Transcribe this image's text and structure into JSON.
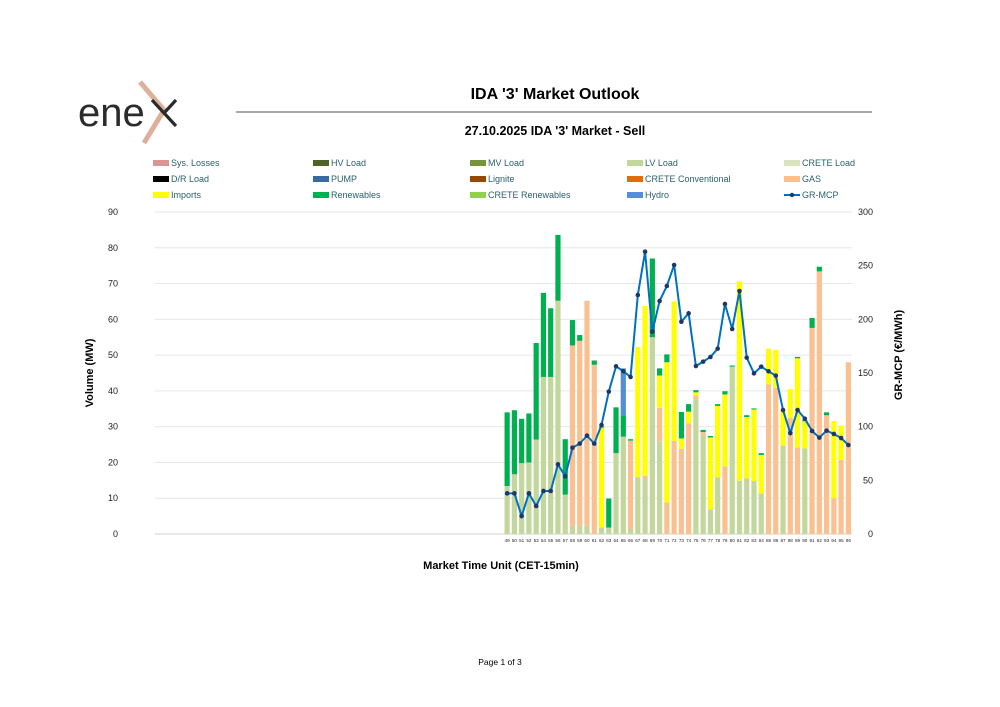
{
  "header": {
    "logo_text": "enex",
    "title": "IDA '3' Market Outlook",
    "subtitle": "27.10.2025  IDA '3' Market - Sell"
  },
  "footer": {
    "page": "Page 1 of 3"
  },
  "chart_data": {
    "type": "bar",
    "stacked": true,
    "xlabel": "Market Time Unit (CET-15min)",
    "ylabel": "Volume (MW)",
    "y2label": "GR-MCP (€/MWh)",
    "ylim": [
      0,
      90
    ],
    "y2lim": [
      0,
      300
    ],
    "yticks": [
      "0",
      "10",
      "20",
      "30",
      "40",
      "50",
      "60",
      "70",
      "80",
      "90"
    ],
    "y2ticks": [
      "0",
      "50",
      "100",
      "150",
      "200",
      "250",
      "300"
    ],
    "grid": true,
    "legend_placement": "top",
    "categories": [
      "49",
      "50",
      "51",
      "52",
      "53",
      "54",
      "55",
      "56",
      "57",
      "58",
      "59",
      "60",
      "61",
      "62",
      "63",
      "64",
      "65",
      "66",
      "67",
      "68",
      "69",
      "70",
      "71",
      "72",
      "73",
      "74",
      "75",
      "76",
      "77",
      "78",
      "79",
      "80",
      "81",
      "82",
      "83",
      "84",
      "85",
      "86",
      "87",
      "88",
      "89",
      "90",
      "91",
      "92",
      "93",
      "94",
      "95",
      "96"
    ],
    "legend": [
      {
        "name": "Sys. Losses",
        "color": "#d99694"
      },
      {
        "name": "HV Load",
        "color": "#4f6228"
      },
      {
        "name": "MV Load",
        "color": "#77933c"
      },
      {
        "name": "LV Load",
        "color": "#c3d69b"
      },
      {
        "name": "CRETE Load",
        "color": "#d7e4bd"
      },
      {
        "name": "D/R Load",
        "color": "#000000"
      },
      {
        "name": "PUMP",
        "color": "#3a6aa3"
      },
      {
        "name": "Lignite",
        "color": "#974806"
      },
      {
        "name": "CRETE Conventional",
        "color": "#e36c09"
      },
      {
        "name": "GAS",
        "color": "#fac090"
      },
      {
        "name": "Imports",
        "color": "#ffff00"
      },
      {
        "name": "Renewables",
        "color": "#00b050"
      },
      {
        "name": "CRETE Renewables",
        "color": "#92d050"
      },
      {
        "name": "Hydro",
        "color": "#558ed5"
      },
      {
        "name": "GR-MCP",
        "color": "#0070c0",
        "type": "line"
      }
    ],
    "series": [
      {
        "name": "LV Load",
        "color": "#c3d69b",
        "values": [
          13.4,
          16.7,
          19.8,
          20.0,
          26.4,
          43.9,
          43.9,
          65.2,
          11.0,
          2.3,
          2.3,
          2.3,
          0,
          1.8,
          1.8,
          22.6,
          27.2,
          1.4,
          15.9,
          15.5,
          55.0,
          25.8,
          0,
          0,
          0,
          0,
          37.7,
          27.7,
          6.9,
          15.8,
          0,
          46.8,
          14.9,
          15.6,
          14.8,
          11.3,
          0,
          0,
          24.7,
          0,
          0,
          23.9,
          0,
          0,
          0,
          0,
          0,
          0
        ]
      },
      {
        "name": "GAS",
        "color": "#fac090",
        "values": [
          0,
          0,
          0,
          0,
          0,
          0,
          0,
          0,
          0,
          50.4,
          51.7,
          62.9,
          47.3,
          0,
          0,
          0,
          0,
          24.7,
          0,
          0.8,
          0,
          9.5,
          8.8,
          26.0,
          23.8,
          30.9,
          1.0,
          0.8,
          0,
          0,
          18.9,
          0,
          0,
          0,
          0,
          0,
          41.8,
          40.9,
          0,
          32.5,
          24.2,
          0,
          57.6,
          73.4,
          33.2,
          10.0,
          20.7,
          48.0
        ]
      },
      {
        "name": "Imports",
        "color": "#ffff00",
        "values": [
          0,
          0,
          0,
          0,
          0,
          0,
          0,
          0,
          0,
          0,
          0,
          0,
          0,
          27.9,
          0,
          0,
          0,
          0,
          36.4,
          47.4,
          0,
          9.0,
          39.2,
          39.0,
          2.9,
          3.3,
          0.9,
          0,
          20.1,
          20.0,
          20.1,
          0,
          55.7,
          17.1,
          20.0,
          10.8,
          10.0,
          10.5,
          9.8,
          8.0,
          24.9,
          7.6,
          0,
          0,
          0,
          21.6,
          9.6,
          0
        ]
      },
      {
        "name": "Renewables",
        "color": "#00b050",
        "values": [
          20.6,
          17.9,
          12.4,
          13.7,
          27.0,
          23.5,
          19.2,
          18.4,
          15.5,
          7.1,
          1.6,
          0,
          1.2,
          0.3,
          8.1,
          12.8,
          5.9,
          0.4,
          0,
          0,
          22.0,
          2.0,
          2.2,
          0,
          7.4,
          2.1,
          0.6,
          0.6,
          0.4,
          0.5,
          0.9,
          0.3,
          0,
          0.5,
          0.3,
          0.5,
          0,
          0,
          0,
          0,
          0.4,
          0.3,
          2.8,
          1.3,
          0.8,
          0,
          0,
          0
        ]
      },
      {
        "name": "Hydro",
        "color": "#558ed5",
        "values": [
          0,
          0,
          0,
          0,
          0,
          0,
          0,
          0,
          0,
          0,
          0,
          0,
          0,
          0,
          0,
          0,
          13.2,
          0,
          0,
          0,
          0,
          0,
          0,
          0,
          0,
          0,
          0,
          0,
          0,
          0,
          0,
          0,
          0,
          0,
          0,
          0,
          0,
          0,
          0,
          0,
          0,
          0,
          0,
          0,
          0,
          0,
          0,
          0
        ]
      }
    ],
    "line": {
      "name": "GR-MCP",
      "axis": "right",
      "color": "#0070c0",
      "marker_color": "#1f3864",
      "values": [
        37.9,
        37.9,
        16.8,
        37.9,
        26.1,
        40.1,
        40.1,
        64.9,
        53.7,
        80.4,
        84.2,
        91.6,
        84.2,
        101.6,
        132.6,
        156.2,
        151.6,
        146.3,
        222.7,
        263.0,
        188.5,
        217.1,
        231.1,
        250.6,
        197.8,
        205.6,
        156.5,
        160.6,
        164.9,
        172.7,
        214.3,
        191.0,
        226.4,
        164.3,
        149.7,
        155.9,
        151.6,
        147.5,
        115.5,
        94.1,
        115.5,
        107.5,
        96.0,
        89.8,
        96.3,
        93.2,
        89.4,
        82.9
      ]
    }
  }
}
